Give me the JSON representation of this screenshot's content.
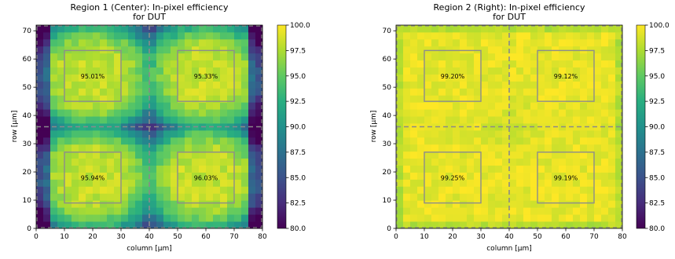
{
  "chart_data": [
    {
      "type": "heatmap",
      "title_line1": "Region 1 (Center): In-pixel efficiency",
      "title_line2": "for DUT",
      "xlabel": "column [µm]",
      "ylabel": "row [µm]",
      "xlim": [
        0,
        80
      ],
      "ylim": [
        0,
        72
      ],
      "x_ticks": [
        "0",
        "10",
        "20",
        "30",
        "40",
        "50",
        "60",
        "70",
        "80"
      ],
      "y_ticks": [
        "0",
        "10",
        "20",
        "30",
        "40",
        "50",
        "60",
        "70"
      ],
      "zlim": [
        80,
        100
      ],
      "colorbar_ticks": [
        "80.0",
        "82.5",
        "85.0",
        "87.5",
        "90.0",
        "92.5",
        "95.0",
        "97.5",
        "100.0"
      ],
      "colormap": "viridis",
      "pattern": "center",
      "crosshair": {
        "x": 40,
        "y": 36
      },
      "boxes": [
        {
          "x": [
            10,
            30
          ],
          "y": [
            45,
            63
          ],
          "value_label": "95.01%"
        },
        {
          "x": [
            50,
            70
          ],
          "y": [
            45,
            63
          ],
          "value_label": "95.33%"
        },
        {
          "x": [
            10,
            30
          ],
          "y": [
            9,
            27
          ],
          "value_label": "95.94%"
        },
        {
          "x": [
            50,
            70
          ],
          "y": [
            9,
            27
          ],
          "value_label": "96.03%"
        }
      ]
    },
    {
      "type": "heatmap",
      "title_line1": "Region 2 (Right): In-pixel efficiency",
      "title_line2": "for DUT",
      "xlabel": "column [µm]",
      "ylabel": "row [µm]",
      "xlim": [
        0,
        80
      ],
      "ylim": [
        0,
        72
      ],
      "x_ticks": [
        "0",
        "10",
        "20",
        "30",
        "40",
        "50",
        "60",
        "70",
        "80"
      ],
      "y_ticks": [
        "0",
        "10",
        "20",
        "30",
        "40",
        "50",
        "60",
        "70"
      ],
      "zlim": [
        80,
        100
      ],
      "colorbar_ticks": [
        "80.0",
        "82.5",
        "85.0",
        "87.5",
        "90.0",
        "92.5",
        "95.0",
        "97.5",
        "100.0"
      ],
      "colormap": "viridis",
      "pattern": "right",
      "crosshair": {
        "x": 40,
        "y": 36
      },
      "boxes": [
        {
          "x": [
            10,
            30
          ],
          "y": [
            45,
            63
          ],
          "value_label": "99.20%"
        },
        {
          "x": [
            50,
            70
          ],
          "y": [
            45,
            63
          ],
          "value_label": "99.12%"
        },
        {
          "x": [
            10,
            30
          ],
          "y": [
            9,
            27
          ],
          "value_label": "99.25%"
        },
        {
          "x": [
            50,
            70
          ],
          "y": [
            9,
            27
          ],
          "value_label": "99.19%"
        }
      ]
    }
  ]
}
